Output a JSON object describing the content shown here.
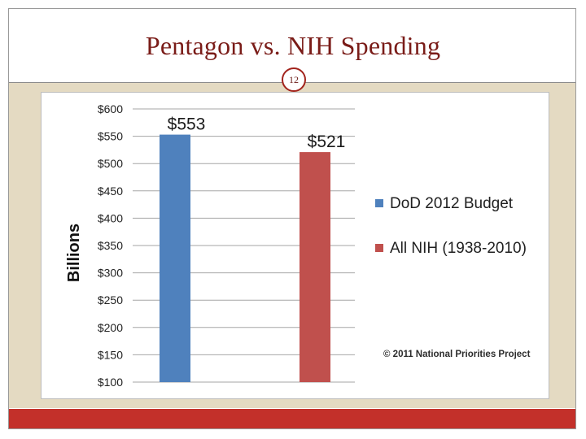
{
  "slide": {
    "title": "Pentagon vs. NIH Spending",
    "page_number": "12"
  },
  "colors": {
    "accent": "#c3302a",
    "title": "#7a1c18",
    "band": "#e4dac2"
  },
  "chart_data": {
    "type": "bar",
    "title": "",
    "xlabel": "",
    "ylabel": "Billions",
    "ylim": [
      100,
      600
    ],
    "yticks": [
      {
        "value": 100,
        "label": "$100"
      },
      {
        "value": 150,
        "label": "$150"
      },
      {
        "value": 200,
        "label": "$200"
      },
      {
        "value": 250,
        "label": "$250"
      },
      {
        "value": 300,
        "label": "$300"
      },
      {
        "value": 350,
        "label": "$350"
      },
      {
        "value": 400,
        "label": "$400"
      },
      {
        "value": 450,
        "label": "$450"
      },
      {
        "value": 500,
        "label": "$500"
      },
      {
        "value": 550,
        "label": "$550"
      },
      {
        "value": 600,
        "label": "$600"
      }
    ],
    "grid": true,
    "legend_position": "right",
    "series": [
      {
        "name": "DoD 2012 Budget",
        "value": 553,
        "data_label": "$553",
        "color": "#4f81bd"
      },
      {
        "name": "All NIH (1938-2010)",
        "value": 521,
        "data_label": "$521",
        "color": "#c0504d"
      }
    ],
    "annotation": "© 2011 National Priorities Project"
  }
}
